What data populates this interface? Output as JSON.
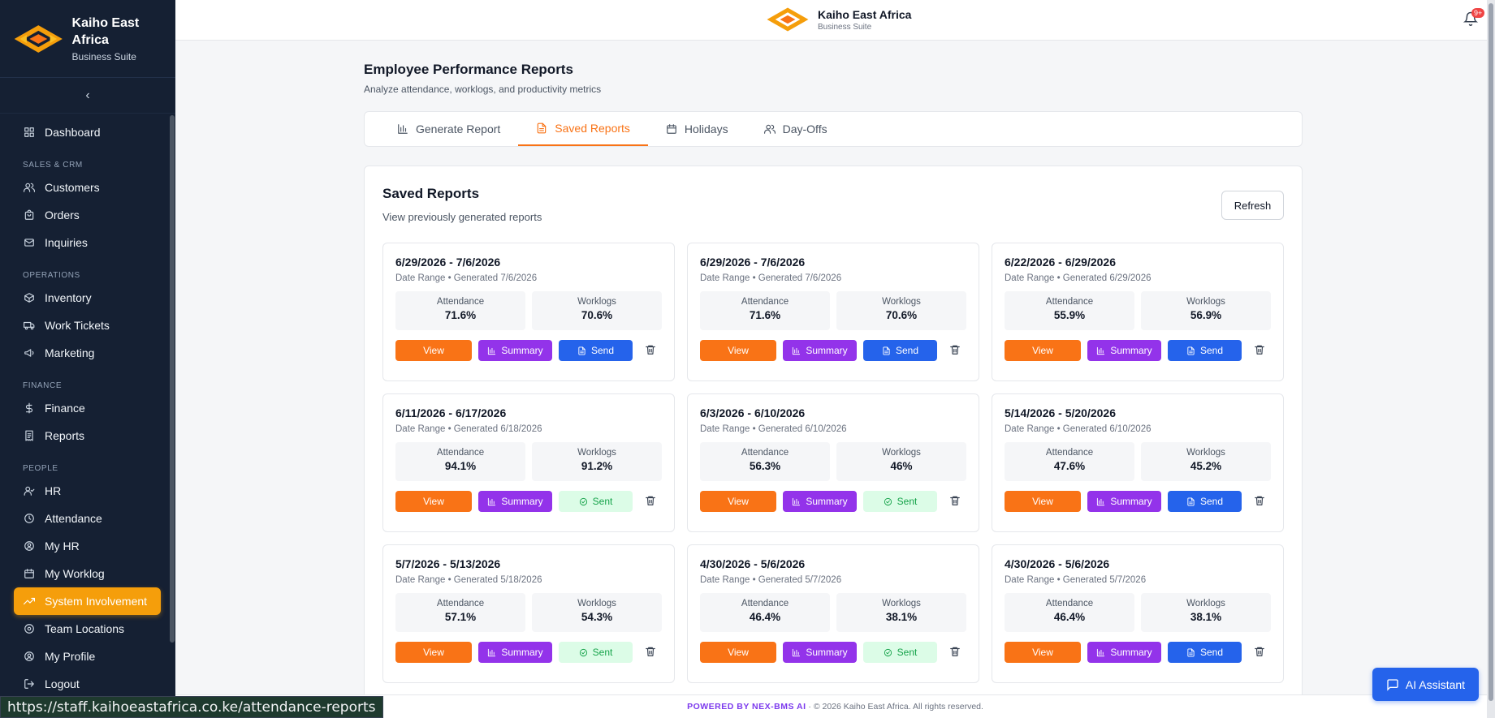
{
  "brand": {
    "name": "Kaiho East Africa",
    "subtitle": "Business Suite"
  },
  "sidebar": {
    "collapse_icon": "chevron-left-icon",
    "top_items": [
      {
        "label": "Dashboard",
        "icon": "dashboard-icon"
      }
    ],
    "sections": [
      {
        "title": "SALES & CRM",
        "items": [
          {
            "label": "Customers",
            "icon": "users-icon"
          },
          {
            "label": "Orders",
            "icon": "bag-icon"
          },
          {
            "label": "Inquiries",
            "icon": "mail-icon"
          }
        ]
      },
      {
        "title": "OPERATIONS",
        "items": [
          {
            "label": "Inventory",
            "icon": "box-icon"
          },
          {
            "label": "Work Tickets",
            "icon": "truck-icon"
          },
          {
            "label": "Marketing",
            "icon": "megaphone-icon"
          }
        ]
      },
      {
        "title": "FINANCE",
        "items": [
          {
            "label": "Finance",
            "icon": "dollar-icon"
          },
          {
            "label": "Reports",
            "icon": "receipt-icon"
          }
        ]
      },
      {
        "title": "PEOPLE",
        "items": [
          {
            "label": "HR",
            "icon": "user-check-icon"
          },
          {
            "label": "Attendance",
            "icon": "clock-icon"
          },
          {
            "label": "My HR",
            "icon": "user-circle-icon"
          },
          {
            "label": "My Worklog",
            "icon": "calendar-icon"
          },
          {
            "label": "System Involvement",
            "icon": "trending-up-icon",
            "active": true
          },
          {
            "label": "Team Locations",
            "icon": "location-icon"
          }
        ]
      }
    ],
    "bottom_items": [
      {
        "label": "My Profile",
        "icon": "user-circle-icon"
      },
      {
        "label": "Logout",
        "icon": "logout-icon"
      }
    ]
  },
  "topbar": {
    "brand_name": "Kaiho East Africa",
    "brand_sub": "Business Suite",
    "notification_badge": "9+"
  },
  "page": {
    "title": "Employee Performance Reports",
    "subtitle": "Analyze attendance, worklogs, and productivity metrics"
  },
  "tabs": [
    {
      "label": "Generate Report",
      "icon": "bar-chart-icon"
    },
    {
      "label": "Saved Reports",
      "icon": "file-icon",
      "active": true
    },
    {
      "label": "Holidays",
      "icon": "calendar-icon"
    },
    {
      "label": "Day-Offs",
      "icon": "users-icon"
    }
  ],
  "saved": {
    "title": "Saved Reports",
    "subtitle": "View previously generated reports",
    "refresh_label": "Refresh",
    "labels": {
      "attendance": "Attendance",
      "worklogs": "Worklogs",
      "view": "View",
      "summary": "Summary",
      "send": "Send",
      "sent": "Sent"
    },
    "reports": [
      {
        "range": "6/29/2026 - 7/6/2026",
        "meta": "Date Range • Generated 7/6/2026",
        "attendance": "71.6%",
        "worklogs": "70.6%",
        "sent": false
      },
      {
        "range": "6/29/2026 - 7/6/2026",
        "meta": "Date Range • Generated 7/6/2026",
        "attendance": "71.6%",
        "worklogs": "70.6%",
        "sent": false
      },
      {
        "range": "6/22/2026 - 6/29/2026",
        "meta": "Date Range • Generated 6/29/2026",
        "attendance": "55.9%",
        "worklogs": "56.9%",
        "sent": false
      },
      {
        "range": "6/11/2026 - 6/17/2026",
        "meta": "Date Range • Generated 6/18/2026",
        "attendance": "94.1%",
        "worklogs": "91.2%",
        "sent": true
      },
      {
        "range": "6/3/2026 - 6/10/2026",
        "meta": "Date Range • Generated 6/10/2026",
        "attendance": "56.3%",
        "worklogs": "46%",
        "sent": true
      },
      {
        "range": "5/14/2026 - 5/20/2026",
        "meta": "Date Range • Generated 6/10/2026",
        "attendance": "47.6%",
        "worklogs": "45.2%",
        "sent": false
      },
      {
        "range": "5/7/2026 - 5/13/2026",
        "meta": "Date Range • Generated 5/18/2026",
        "attendance": "57.1%",
        "worklogs": "54.3%",
        "sent": true
      },
      {
        "range": "4/30/2026 - 5/6/2026",
        "meta": "Date Range • Generated 5/7/2026",
        "attendance": "46.4%",
        "worklogs": "38.1%",
        "sent": true
      },
      {
        "range": "4/30/2026 - 5/6/2026",
        "meta": "Date Range • Generated 5/7/2026",
        "attendance": "46.4%",
        "worklogs": "38.1%",
        "sent": false
      }
    ]
  },
  "footer": {
    "powered": "POWERED BY NEX-BMS AI",
    "copyright": "© 2026 Kaiho East Africa. All rights reserved."
  },
  "status_url": "https://staff.kaihoeastafrica.co.ke/attendance-reports",
  "ai_assistant_label": "AI Assistant",
  "colors": {
    "accent": "#f97316",
    "sidebar_bg": "#152033",
    "active_nav": "#f59e0b",
    "summary": "#9333ea",
    "send": "#2563eb"
  }
}
